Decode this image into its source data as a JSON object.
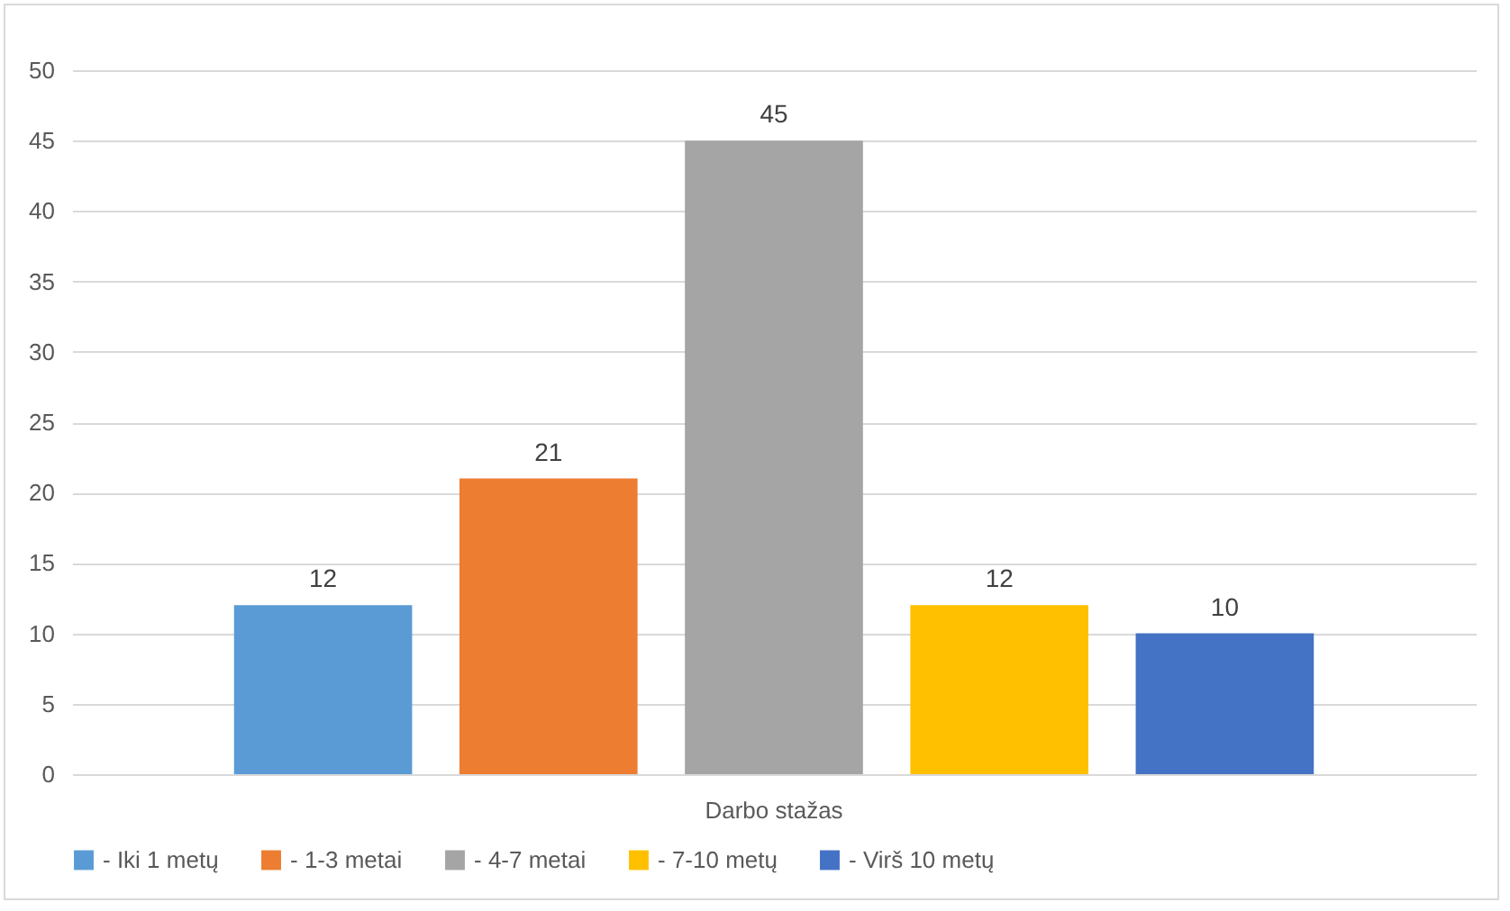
{
  "chart_data": {
    "type": "bar",
    "categories": [
      "Darbo stažas"
    ],
    "series": [
      {
        "name": "- Iki 1 metų",
        "color": "#5b9bd5",
        "values": [
          12
        ]
      },
      {
        "name": "- 1-3 metai",
        "color": "#ed7d31",
        "values": [
          21
        ]
      },
      {
        "name": "- 4-7 metai",
        "color": "#a5a5a5",
        "values": [
          45
        ]
      },
      {
        "name": "- 7-10 metų",
        "color": "#ffc000",
        "values": [
          12
        ]
      },
      {
        "name": "- Virš 10 metų",
        "color": "#4472c4",
        "values": [
          10
        ]
      }
    ],
    "ylim": [
      0,
      50
    ],
    "yticks": [
      0,
      5,
      10,
      15,
      20,
      25,
      30,
      35,
      40,
      45,
      50
    ],
    "grid": "y",
    "legend": "bottom",
    "data_labels": true
  }
}
